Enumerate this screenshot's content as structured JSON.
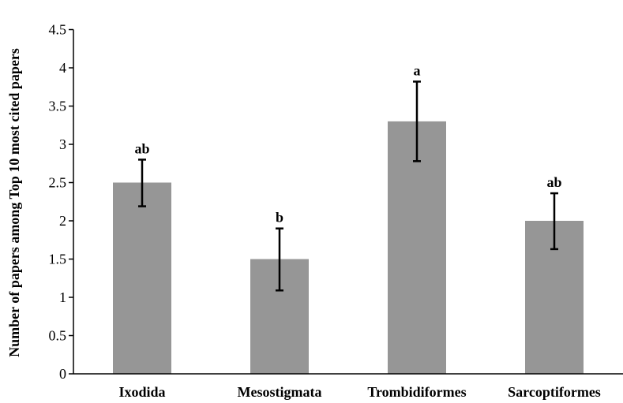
{
  "chart_data": {
    "type": "bar",
    "title": "",
    "xlabel": "",
    "ylabel": "Number of papers among Top 10 most cited papers",
    "ylim": [
      0,
      4.5
    ],
    "yticks": [
      "0",
      "0.5",
      "1",
      "1.5",
      "2",
      "2.5",
      "3",
      "3.5",
      "4",
      "4.5"
    ],
    "grid": false,
    "legend": "none",
    "bar_color": "#969696",
    "categories": [
      "Ixodida",
      "Mesostigmata",
      "Trombidiformes",
      "Sarcoptiformes"
    ],
    "values": [
      2.5,
      1.5,
      3.3,
      2.0
    ],
    "error_low": [
      2.19,
      1.09,
      2.78,
      1.63
    ],
    "error_high": [
      2.8,
      1.9,
      3.82,
      2.36
    ],
    "significance_labels": [
      "ab",
      "b",
      "a",
      "ab"
    ]
  }
}
